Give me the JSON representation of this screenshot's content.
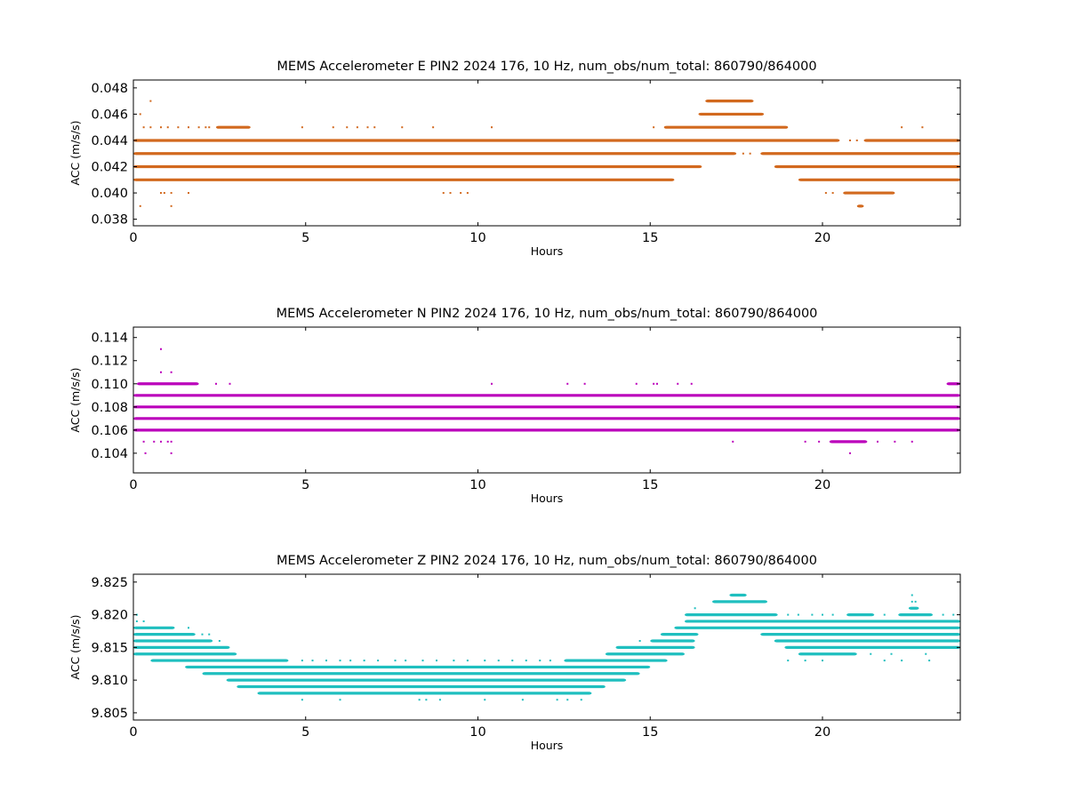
{
  "chart_data": [
    {
      "type": "scatter",
      "title": "MEMS Accelerometer E PIN2 2024 176, 10 Hz, num_obs/num_total: 860790/864000",
      "xlabel": "Hours",
      "ylabel": "ACC (m/s/s)",
      "xlim": [
        0,
        24
      ],
      "ylim": [
        0.0375,
        0.0486
      ],
      "xticks": [
        0,
        5,
        10,
        15,
        20
      ],
      "yticks": [
        0.038,
        0.04,
        0.042,
        0.044,
        0.046,
        0.048
      ],
      "ytick_decimals": 3,
      "color": "#d2691e",
      "levels": [
        {
          "y": 0.047,
          "segments": [
            [
              16.6,
              18.0
            ]
          ],
          "dots": [
            0.5
          ]
        },
        {
          "y": 0.046,
          "segments": [
            [
              16.4,
              18.3
            ]
          ],
          "dots": [
            0.2
          ]
        },
        {
          "y": 0.045,
          "segments": [
            [
              2.4,
              3.4
            ],
            [
              15.4,
              19.0
            ]
          ],
          "dots": [
            0.3,
            0.5,
            0.8,
            1.0,
            1.3,
            1.6,
            1.9,
            2.1,
            2.2,
            4.9,
            5.8,
            6.2,
            6.5,
            6.8,
            7.0,
            7.8,
            8.7,
            10.4,
            15.1,
            22.3,
            22.9
          ]
        },
        {
          "y": 0.044,
          "segments": [
            [
              0,
              20.5
            ],
            [
              21.2,
              24
            ]
          ],
          "dots": [
            20.8,
            21.0
          ]
        },
        {
          "y": 0.043,
          "segments": [
            [
              0,
              17.5
            ],
            [
              18.2,
              24
            ]
          ],
          "dots": [
            17.7,
            17.9
          ]
        },
        {
          "y": 0.042,
          "segments": [
            [
              0,
              16.5
            ],
            [
              18.6,
              24
            ]
          ],
          "dots": []
        },
        {
          "y": 0.041,
          "segments": [
            [
              0,
              15.7
            ],
            [
              19.3,
              24
            ]
          ],
          "dots": [
            2.0,
            2.6,
            2.8
          ]
        },
        {
          "y": 0.04,
          "segments": [
            [
              20.6,
              22.1
            ]
          ],
          "dots": [
            0.8,
            0.9,
            1.1,
            1.6,
            9.0,
            9.2,
            9.5,
            9.7,
            20.1,
            20.3
          ]
        },
        {
          "y": 0.039,
          "segments": [
            [
              21.0,
              21.2
            ]
          ],
          "dots": [
            0.2,
            1.1
          ]
        }
      ]
    },
    {
      "type": "scatter",
      "title": "MEMS Accelerometer N PIN2 2024 176, 10 Hz, num_obs/num_total: 860790/864000",
      "xlabel": "Hours",
      "ylabel": "ACC (m/s/s)",
      "xlim": [
        0,
        24
      ],
      "ylim": [
        0.1023,
        0.1149
      ],
      "xticks": [
        0,
        5,
        10,
        15,
        20
      ],
      "yticks": [
        0.104,
        0.106,
        0.108,
        0.11,
        0.112,
        0.114
      ],
      "ytick_decimals": 3,
      "color": "#bb00bb",
      "levels": [
        {
          "y": 0.113,
          "segments": [],
          "dots": [
            0.8
          ]
        },
        {
          "y": 0.111,
          "segments": [],
          "dots": [
            0.8,
            1.1
          ]
        },
        {
          "y": 0.11,
          "segments": [
            [
              0.1,
              1.9
            ],
            [
              23.6,
              24
            ]
          ],
          "dots": [
            2.4,
            2.8,
            10.4,
            12.6,
            13.1,
            14.6,
            15.1,
            15.2,
            15.8,
            16.2
          ]
        },
        {
          "y": 0.109,
          "segments": [
            [
              0,
              24
            ]
          ],
          "dots": []
        },
        {
          "y": 0.108,
          "segments": [
            [
              0,
              24
            ]
          ],
          "dots": []
        },
        {
          "y": 0.107,
          "segments": [
            [
              0,
              24
            ]
          ],
          "dots": []
        },
        {
          "y": 0.106,
          "segments": [
            [
              0,
              24
            ]
          ],
          "dots": []
        },
        {
          "y": 0.105,
          "segments": [
            [
              20.2,
              21.3
            ]
          ],
          "dots": [
            0.3,
            0.6,
            0.8,
            1.0,
            1.1,
            17.4,
            19.5,
            19.9,
            21.6,
            22.1,
            22.6
          ]
        },
        {
          "y": 0.104,
          "segments": [],
          "dots": [
            0.35,
            1.1,
            20.8
          ]
        }
      ]
    },
    {
      "type": "scatter",
      "title": "MEMS Accelerometer Z PIN2 2024 176, 10 Hz, num_obs/num_total: 860790/864000",
      "xlabel": "Hours",
      "ylabel": "ACC (m/s/s)",
      "xlim": [
        0,
        24
      ],
      "ylim": [
        9.8039,
        9.8262
      ],
      "xticks": [
        0,
        5,
        10,
        15,
        20
      ],
      "yticks": [
        9.805,
        9.81,
        9.815,
        9.82,
        9.825
      ],
      "ytick_decimals": 3,
      "color": "#1fbfbf",
      "levels": [
        {
          "y": 9.823,
          "segments": [
            [
              17.3,
              17.8
            ]
          ],
          "dots": [
            22.6
          ]
        },
        {
          "y": 9.822,
          "segments": [
            [
              16.8,
              18.4
            ]
          ],
          "dots": [
            22.6,
            22.7
          ]
        },
        {
          "y": 9.821,
          "segments": [
            [
              22.5,
              22.8
            ]
          ],
          "dots": [
            16.3
          ]
        },
        {
          "y": 9.82,
          "segments": [
            [
              16.0,
              18.7
            ],
            [
              20.7,
              21.5
            ],
            [
              22.2,
              23.2
            ]
          ],
          "dots": [
            19.0,
            19.3,
            19.7,
            20.0,
            20.3,
            21.8,
            23.5,
            23.8,
            0.1
          ]
        },
        {
          "y": 9.819,
          "segments": [
            [
              16.0,
              24
            ]
          ],
          "dots": [
            0.1,
            0.3
          ]
        },
        {
          "y": 9.818,
          "segments": [
            [
              0,
              1.2
            ],
            [
              15.7,
              24
            ]
          ],
          "dots": [
            1.6
          ]
        },
        {
          "y": 9.817,
          "segments": [
            [
              0,
              1.8
            ],
            [
              15.3,
              16.4
            ],
            [
              18.2,
              24
            ]
          ],
          "dots": [
            2.0,
            2.2
          ]
        },
        {
          "y": 9.816,
          "segments": [
            [
              0,
              2.3
            ],
            [
              15.0,
              16.3
            ],
            [
              18.6,
              24
            ]
          ],
          "dots": [
            14.7,
            15.2,
            2.5
          ]
        },
        {
          "y": 9.815,
          "segments": [
            [
              0,
              2.8
            ],
            [
              14.0,
              16.3
            ],
            [
              18.9,
              24
            ]
          ],
          "dots": []
        },
        {
          "y": 9.814,
          "segments": [
            [
              0,
              3.0
            ],
            [
              13.7,
              16.0
            ],
            [
              19.3,
              21.0
            ]
          ],
          "dots": [
            21.4,
            22.0,
            23.0
          ]
        },
        {
          "y": 9.813,
          "segments": [
            [
              0.5,
              4.5
            ],
            [
              12.5,
              15.5
            ]
          ],
          "dots": [
            4.9,
            5.2,
            5.6,
            6.0,
            6.3,
            6.7,
            7.1,
            7.6,
            7.9,
            8.4,
            8.8,
            9.3,
            9.7,
            10.2,
            10.6,
            11.0,
            11.4,
            11.8,
            12.1,
            19.0,
            19.5,
            20.0,
            21.8,
            22.3,
            23.1
          ]
        },
        {
          "y": 9.812,
          "segments": [
            [
              1.5,
              15.0
            ]
          ],
          "dots": []
        },
        {
          "y": 9.811,
          "segments": [
            [
              2.0,
              14.7
            ]
          ],
          "dots": []
        },
        {
          "y": 9.81,
          "segments": [
            [
              2.7,
              14.3
            ]
          ],
          "dots": []
        },
        {
          "y": 9.809,
          "segments": [
            [
              3.0,
              13.7
            ]
          ],
          "dots": []
        },
        {
          "y": 9.808,
          "segments": [
            [
              3.6,
              13.3
            ]
          ],
          "dots": []
        },
        {
          "y": 9.807,
          "segments": [],
          "dots": [
            4.9,
            6.0,
            8.3,
            8.5,
            8.9,
            10.2,
            11.3,
            12.3,
            12.6,
            13.0
          ]
        }
      ]
    }
  ]
}
